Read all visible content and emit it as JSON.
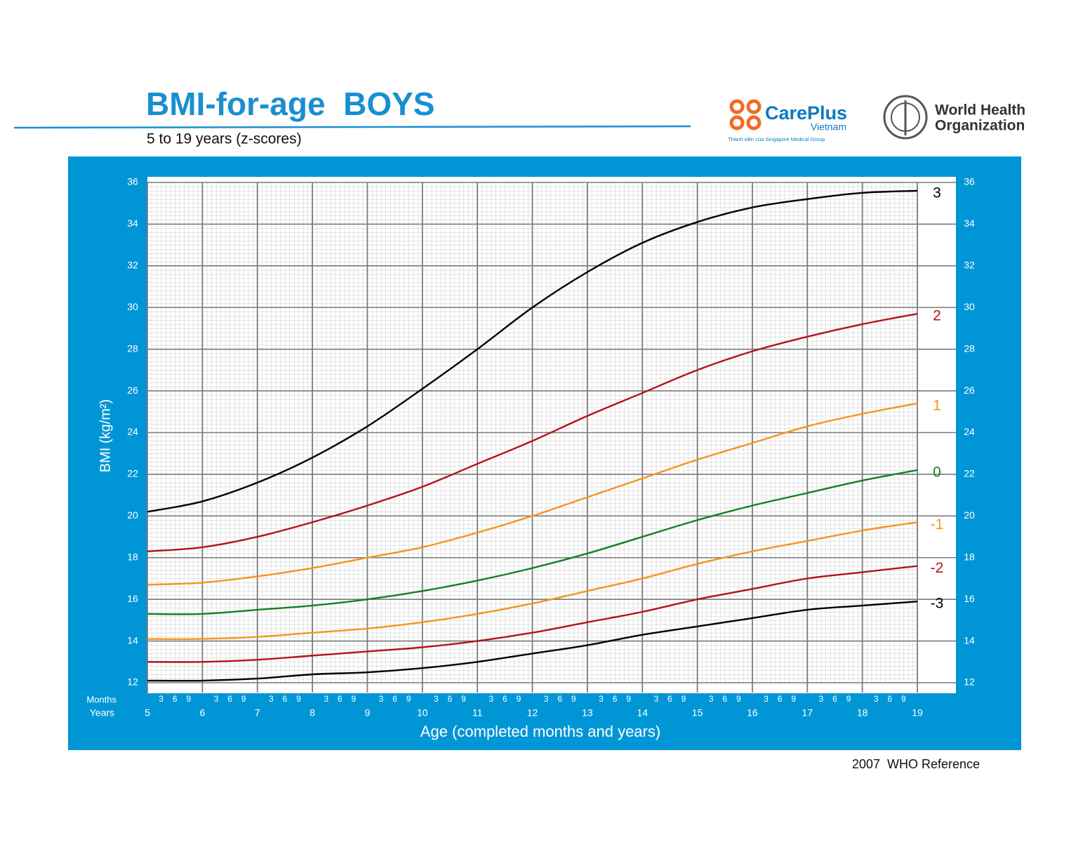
{
  "header": {
    "title": "BMI-for-age  BOYS",
    "subtitle": "5 to 19 years (z-scores)"
  },
  "logos": {
    "careplus_name": "CarePlus",
    "careplus_country": "Vietnam",
    "careplus_tagline": "Thành viên của Singapore Medical Group",
    "who_line1": "World Health",
    "who_line2": "Organization"
  },
  "footer": "2007  WHO Reference",
  "chart_data": {
    "type": "line",
    "x_label": "Age (completed months and years)",
    "y_label": "BMI (kg/m²)",
    "months_label": "Months",
    "years_label": "Years",
    "month_ticks": [
      "3",
      "6",
      "9"
    ],
    "x": [
      5,
      6,
      7,
      8,
      9,
      10,
      11,
      12,
      13,
      14,
      15,
      16,
      17,
      18,
      19
    ],
    "xlim": [
      5,
      19
    ],
    "xticks": [
      5,
      6,
      7,
      8,
      9,
      10,
      11,
      12,
      13,
      14,
      15,
      16,
      17,
      18,
      19
    ],
    "ylim": [
      12,
      36
    ],
    "yticks": [
      12,
      14,
      16,
      18,
      20,
      22,
      24,
      26,
      28,
      30,
      32,
      34,
      36
    ],
    "grid": true,
    "series": [
      {
        "name": "3",
        "color": "#000000",
        "values": [
          20.2,
          20.7,
          21.6,
          22.8,
          24.3,
          26.1,
          28.0,
          30.0,
          31.7,
          33.1,
          34.1,
          34.8,
          35.2,
          35.5,
          35.6
        ]
      },
      {
        "name": "2",
        "color": "#b5121b",
        "values": [
          18.3,
          18.5,
          19.0,
          19.7,
          20.5,
          21.4,
          22.5,
          23.6,
          24.8,
          25.9,
          27.0,
          27.9,
          28.6,
          29.2,
          29.7
        ]
      },
      {
        "name": "1",
        "color": "#f7941d",
        "values": [
          16.7,
          16.8,
          17.1,
          17.5,
          18.0,
          18.5,
          19.2,
          20.0,
          20.9,
          21.8,
          22.7,
          23.5,
          24.3,
          24.9,
          25.4
        ]
      },
      {
        "name": "0",
        "color": "#15801f",
        "values": [
          15.3,
          15.3,
          15.5,
          15.7,
          16.0,
          16.4,
          16.9,
          17.5,
          18.2,
          19.0,
          19.8,
          20.5,
          21.1,
          21.7,
          22.2
        ]
      },
      {
        "name": "-1",
        "color": "#f7941d",
        "values": [
          14.1,
          14.1,
          14.2,
          14.4,
          14.6,
          14.9,
          15.3,
          15.8,
          16.4,
          17.0,
          17.7,
          18.3,
          18.8,
          19.3,
          19.7
        ]
      },
      {
        "name": "-2",
        "color": "#b5121b",
        "values": [
          13.0,
          13.0,
          13.1,
          13.3,
          13.5,
          13.7,
          14.0,
          14.4,
          14.9,
          15.4,
          16.0,
          16.5,
          17.0,
          17.3,
          17.6
        ]
      },
      {
        "name": "-3",
        "color": "#000000",
        "values": [
          12.1,
          12.1,
          12.2,
          12.4,
          12.5,
          12.7,
          13.0,
          13.4,
          13.8,
          14.3,
          14.7,
          15.1,
          15.5,
          15.7,
          15.9
        ]
      }
    ]
  }
}
